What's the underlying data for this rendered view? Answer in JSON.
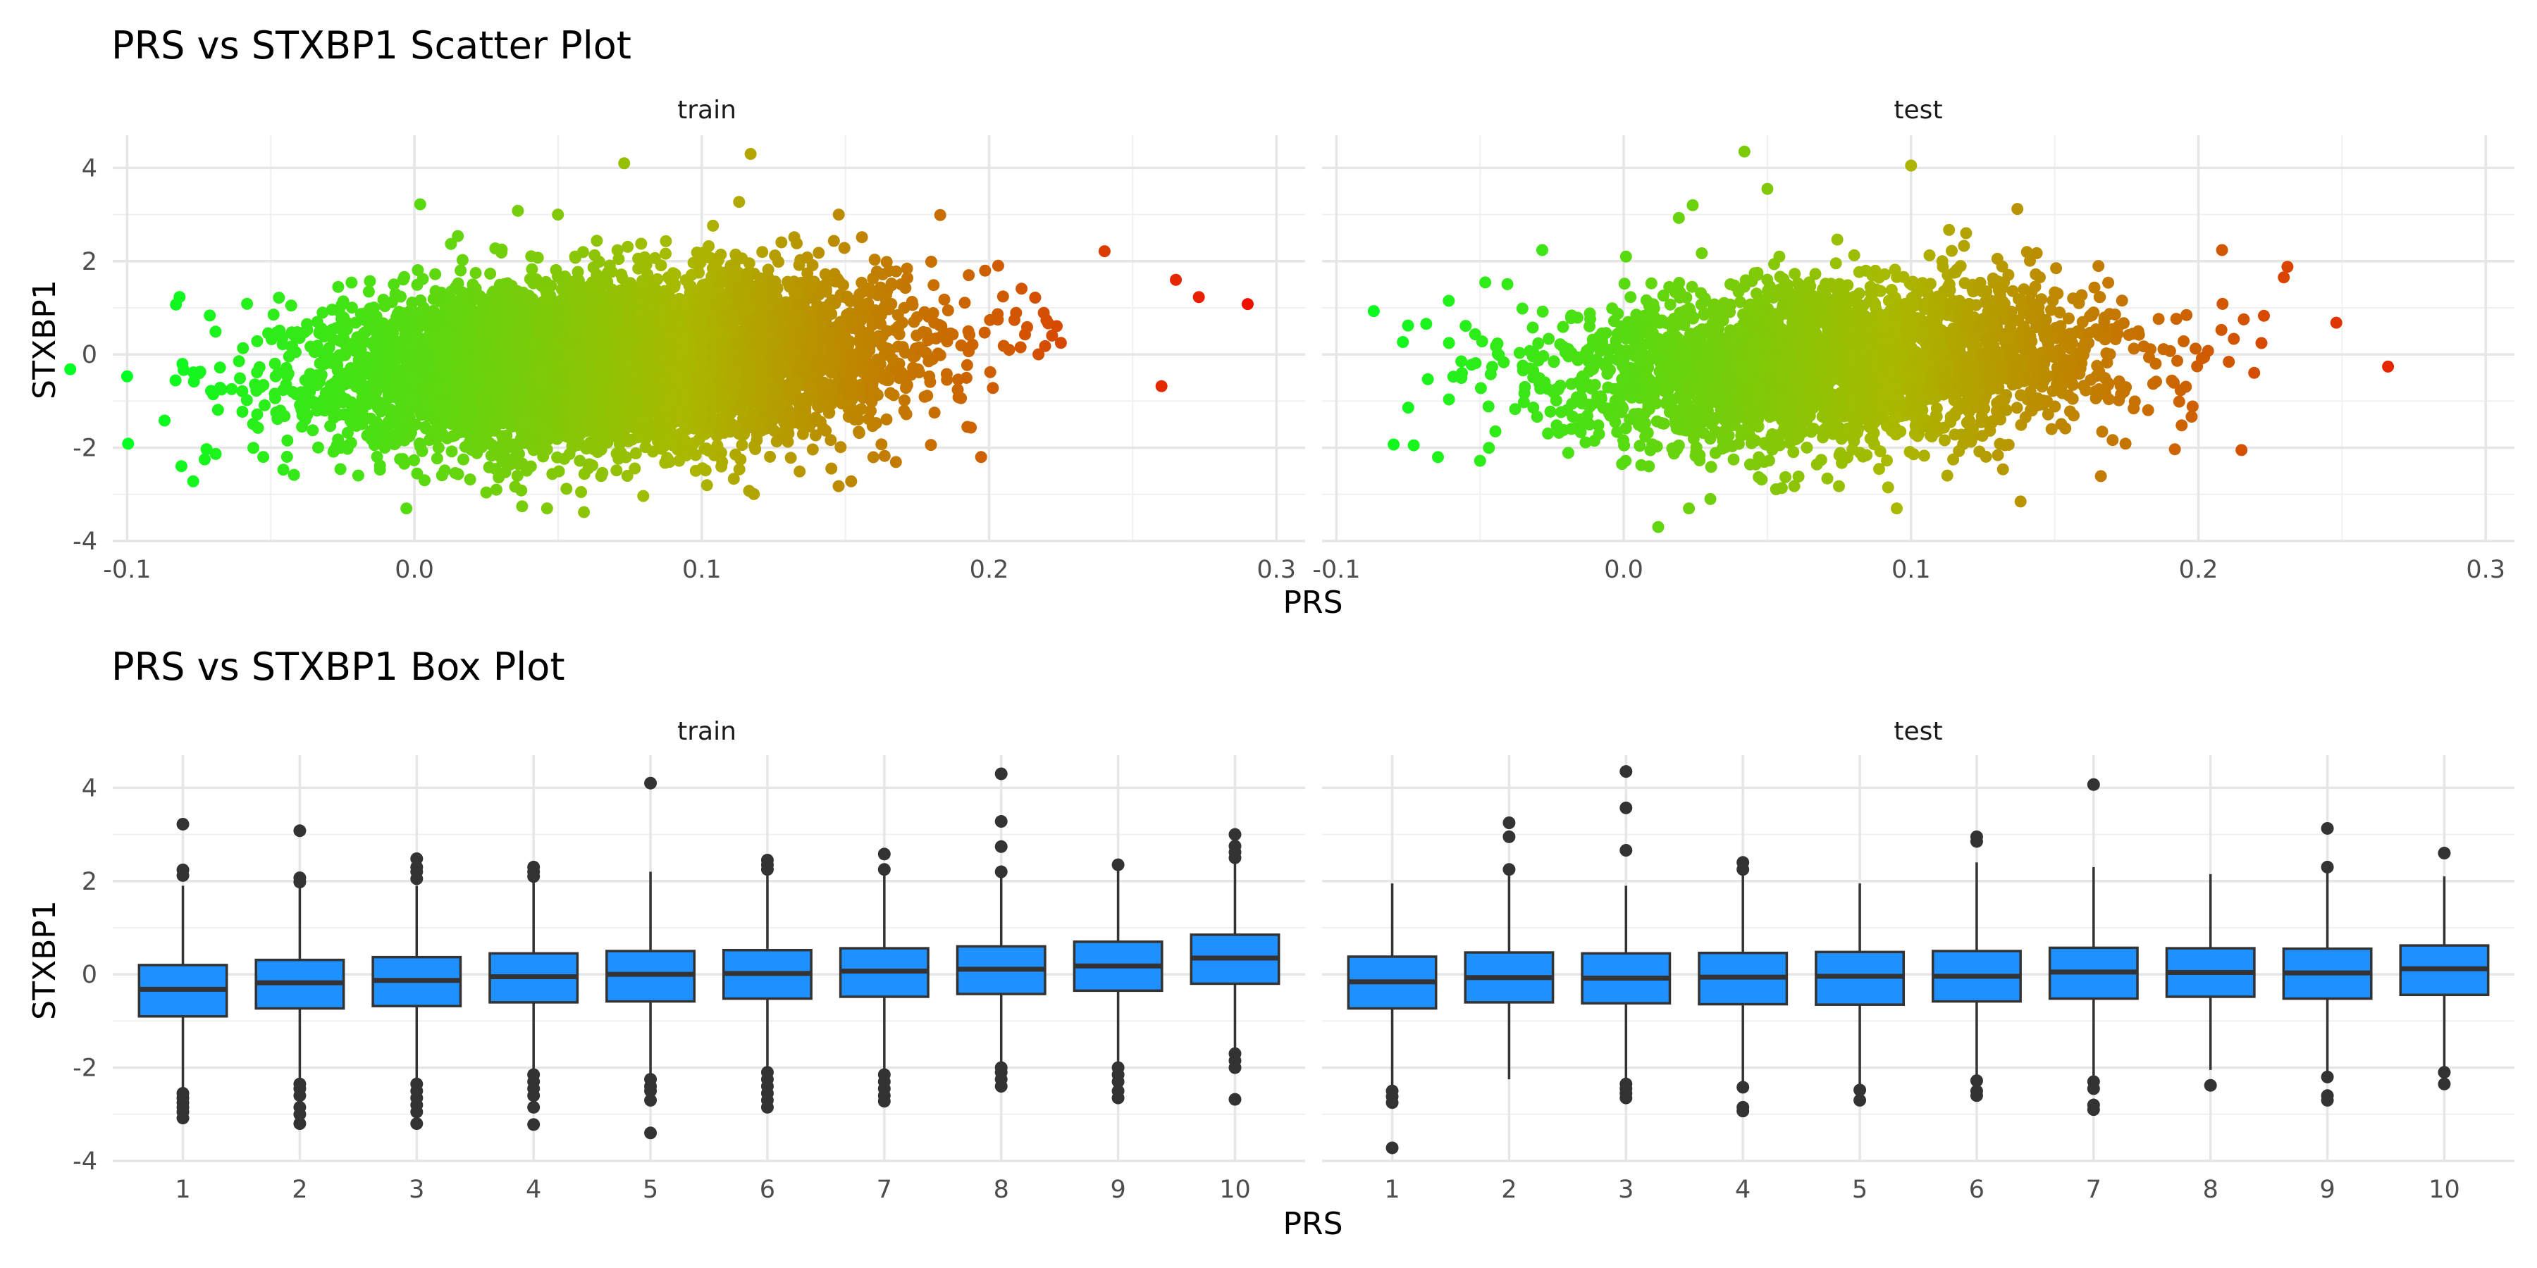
{
  "chart_data": [
    {
      "type": "scatter",
      "title": "PRS vs STXBP1 Scatter Plot",
      "xlabel": "PRS",
      "ylabel": "STXBP1",
      "xlim": [
        -0.105,
        0.31
      ],
      "ylim": [
        -4.0,
        4.7
      ],
      "x_ticks": [
        "-0.1",
        "0.0",
        "0.1",
        "0.2",
        "0.3"
      ],
      "y_ticks": [
        "-4",
        "-2",
        "0",
        "2",
        "4"
      ],
      "grid": true,
      "color_scale": {
        "low": "#00ff22",
        "mid": "#aab800",
        "high": "#ee1100"
      },
      "panels": [
        {
          "name": "train",
          "cloud": {
            "x_mean": 0.07,
            "x_sd": 0.047,
            "y_mean": -0.15,
            "y_sd": 0.85,
            "slope": 3.0,
            "n": 7000
          },
          "points": [
            {
              "x": -0.1,
              "y": -0.47
            },
            {
              "x": -0.083,
              "y": 1.07
            },
            {
              "x": 0.29,
              "y": 1.08
            },
            {
              "x": 0.073,
              "y": 4.1
            },
            {
              "x": 0.117,
              "y": 4.3
            },
            {
              "x": 0.002,
              "y": 3.22
            },
            {
              "x": 0.036,
              "y": 3.08
            },
            {
              "x": 0.113,
              "y": 3.27
            },
            {
              "x": 0.183,
              "y": 2.99
            },
            {
              "x": 0.265,
              "y": 1.6
            },
            {
              "x": 0.273,
              "y": 1.23
            },
            {
              "x": 0.26,
              "y": -0.68
            },
            {
              "x": -0.077,
              "y": -2.72
            },
            {
              "x": 0.059,
              "y": -3.38
            },
            {
              "x": 0.025,
              "y": -2.96
            },
            {
              "x": 0.058,
              "y": -2.95
            },
            {
              "x": 0.152,
              "y": -2.72
            },
            {
              "x": -0.073,
              "y": -2.25
            }
          ]
        },
        {
          "name": "test",
          "cloud": {
            "x_mean": 0.075,
            "x_sd": 0.048,
            "y_mean": -0.2,
            "y_sd": 0.85,
            "slope": 2.6,
            "n": 3000
          },
          "points": [
            {
              "x": -0.087,
              "y": 0.93
            },
            {
              "x": 0.266,
              "y": -0.26
            },
            {
              "x": 0.042,
              "y": 4.35
            },
            {
              "x": 0.1,
              "y": 4.05
            },
            {
              "x": 0.024,
              "y": 3.2
            },
            {
              "x": 0.05,
              "y": 3.55
            },
            {
              "x": 0.137,
              "y": 3.12
            },
            {
              "x": 0.012,
              "y": -3.7
            },
            {
              "x": 0.053,
              "y": -2.89
            },
            {
              "x": 0.092,
              "y": -2.85
            },
            {
              "x": 0.231,
              "y": 1.88
            },
            {
              "x": 0.248,
              "y": 0.68
            },
            {
              "x": 0.215,
              "y": -2.05
            },
            {
              "x": -0.05,
              "y": -2.28
            }
          ]
        }
      ]
    },
    {
      "type": "box",
      "title": "PRS vs STXBP1 Box Plot",
      "xlabel": "PRS",
      "ylabel": "STXBP1",
      "categories": [
        "1",
        "2",
        "3",
        "4",
        "5",
        "6",
        "7",
        "8",
        "9",
        "10"
      ],
      "ylim": [
        -4.0,
        4.7
      ],
      "y_ticks": [
        "-4",
        "-2",
        "0",
        "2",
        "4"
      ],
      "box_color": "#1e90ff",
      "grid": true,
      "panels": [
        {
          "name": "train",
          "boxes": [
            {
              "q1": -0.9,
              "median": -0.32,
              "q3": 0.2,
              "lo": -2.5,
              "hi": 1.9,
              "outliers": [
                3.22,
                2.24,
                2.12,
                -2.55,
                -2.65,
                -2.75,
                -2.85,
                -2.95,
                -3.08
              ]
            },
            {
              "q1": -0.73,
              "median": -0.18,
              "q3": 0.31,
              "lo": -2.3,
              "hi": 1.85,
              "outliers": [
                3.08,
                2.07,
                1.98,
                -2.35,
                -2.45,
                -2.6,
                -2.85,
                -3.0,
                -3.2
              ]
            },
            {
              "q1": -0.68,
              "median": -0.13,
              "q3": 0.37,
              "lo": -2.3,
              "hi": 1.9,
              "outliers": [
                2.48,
                2.3,
                2.2,
                2.05,
                -2.35,
                -2.5,
                -2.65,
                -2.8,
                -2.95,
                -3.2
              ]
            },
            {
              "q1": -0.6,
              "median": -0.05,
              "q3": 0.45,
              "lo": -2.1,
              "hi": 2.0,
              "outliers": [
                2.3,
                2.2,
                2.1,
                -2.15,
                -2.3,
                -2.45,
                -2.6,
                -2.85,
                -3.22
              ]
            },
            {
              "q1": -0.58,
              "median": 0.0,
              "q3": 0.5,
              "lo": -2.2,
              "hi": 2.2,
              "outliers": [
                4.1,
                -2.25,
                -2.4,
                -2.5,
                -2.7,
                -3.4
              ]
            },
            {
              "q1": -0.52,
              "median": 0.02,
              "q3": 0.52,
              "lo": -2.05,
              "hi": 2.2,
              "outliers": [
                2.45,
                2.35,
                2.25,
                -2.1,
                -2.25,
                -2.4,
                -2.55,
                -2.7,
                -2.85
              ]
            },
            {
              "q1": -0.48,
              "median": 0.07,
              "q3": 0.56,
              "lo": -2.1,
              "hi": 2.2,
              "outliers": [
                2.58,
                2.25,
                -2.15,
                -2.3,
                -2.45,
                -2.6,
                -2.72
              ]
            },
            {
              "q1": -0.42,
              "median": 0.11,
              "q3": 0.6,
              "lo": -1.95,
              "hi": 2.15,
              "outliers": [
                4.3,
                3.28,
                2.74,
                2.2,
                -2.0,
                -2.1,
                -2.25,
                -2.4
              ]
            },
            {
              "q1": -0.35,
              "median": 0.18,
              "q3": 0.7,
              "lo": -1.95,
              "hi": 2.3,
              "outliers": [
                2.35,
                -2.0,
                -2.15,
                -2.3,
                -2.5,
                -2.65
              ]
            },
            {
              "q1": -0.2,
              "median": 0.35,
              "q3": 0.85,
              "lo": -1.6,
              "hi": 2.45,
              "outliers": [
                3.0,
                2.75,
                2.62,
                2.5,
                -1.7,
                -1.85,
                -2.0,
                -2.68
              ]
            }
          ]
        },
        {
          "name": "test",
          "boxes": [
            {
              "q1": -0.73,
              "median": -0.16,
              "q3": 0.38,
              "lo": -2.4,
              "hi": 1.95,
              "outliers": [
                -2.5,
                -2.62,
                -2.75,
                -3.72
              ]
            },
            {
              "q1": -0.6,
              "median": -0.07,
              "q3": 0.47,
              "lo": -2.25,
              "hi": 2.2,
              "outliers": [
                3.25,
                2.95,
                2.25
              ]
            },
            {
              "q1": -0.62,
              "median": -0.08,
              "q3": 0.45,
              "lo": -2.3,
              "hi": 1.9,
              "outliers": [
                4.35,
                3.57,
                2.66,
                -2.35,
                -2.45,
                -2.55,
                -2.65
              ]
            },
            {
              "q1": -0.64,
              "median": -0.06,
              "q3": 0.46,
              "lo": -2.35,
              "hi": 2.15,
              "outliers": [
                2.4,
                2.25,
                -2.42,
                -2.85,
                -2.93
              ]
            },
            {
              "q1": -0.65,
              "median": -0.04,
              "q3": 0.48,
              "lo": -2.4,
              "hi": 1.95,
              "outliers": [
                -2.48,
                -2.7
              ]
            },
            {
              "q1": -0.58,
              "median": -0.04,
              "q3": 0.5,
              "lo": -2.2,
              "hi": 2.4,
              "outliers": [
                2.95,
                2.85,
                -2.28,
                -2.5,
                -2.6
              ]
            },
            {
              "q1": -0.52,
              "median": 0.05,
              "q3": 0.57,
              "lo": -2.2,
              "hi": 2.3,
              "outliers": [
                4.07,
                -2.3,
                -2.45,
                -2.8,
                -2.9
              ]
            },
            {
              "q1": -0.48,
              "median": 0.04,
              "q3": 0.56,
              "lo": -2.05,
              "hi": 2.15,
              "outliers": [
                -2.38
              ]
            },
            {
              "q1": -0.52,
              "median": 0.03,
              "q3": 0.55,
              "lo": -2.1,
              "hi": 2.25,
              "outliers": [
                3.13,
                2.3,
                -2.2,
                -2.6,
                -2.7
              ]
            },
            {
              "q1": -0.44,
              "median": 0.12,
              "q3": 0.62,
              "lo": -2.0,
              "hi": 2.1,
              "outliers": [
                2.6,
                -2.1,
                -2.35
              ]
            }
          ]
        }
      ]
    }
  ]
}
